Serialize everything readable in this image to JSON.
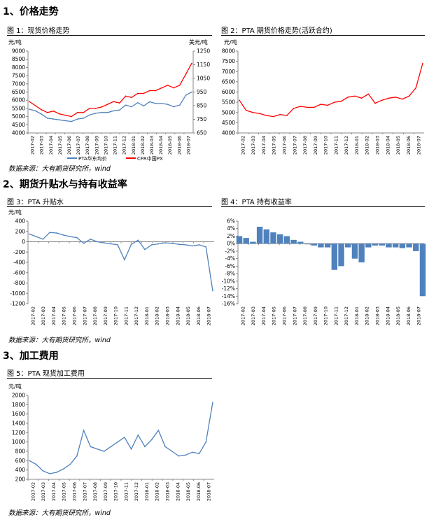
{
  "sections": {
    "s1": "1、价格走势",
    "s2": "2、期货升贴水与持有收益率",
    "s3": "3、加工费用"
  },
  "figures": {
    "f1": "图 1：现货价格走势",
    "f2": "图 2：PTA 期货价格走势(活跃合约)",
    "f3": "图 3：PTA 升贴水",
    "f4": "图 4：PTA 持有收益率",
    "f5": "图 5：PTA 现货加工费用"
  },
  "sources": {
    "src1": "数据来源：大有期货研究所，wind",
    "src2": "数据来源：大有期货研究所，wind",
    "src3": "数据来源：大有期货研究所，wind"
  },
  "chart_data": [
    {
      "id": "c1",
      "type": "line",
      "ylabel": "元/吨",
      "ylabel_right": "美元/吨",
      "ylim": [
        4000,
        9000
      ],
      "yticks": [
        4000,
        4500,
        5000,
        5500,
        6000,
        6500,
        7000,
        7500,
        8000,
        8500,
        9000
      ],
      "ylim_right": [
        650,
        1250
      ],
      "yticks_right": [
        650,
        750,
        850,
        950,
        1050,
        1150,
        1250
      ],
      "x_ticks": [
        "2017-02",
        "2017-03",
        "2017-04",
        "2017-05",
        "2017-06",
        "2017-07",
        "2017-08",
        "2017-09",
        "2017-10",
        "2017-11",
        "2017-12",
        "2018-01",
        "2018-02",
        "2018-03",
        "2018-04",
        "2018-05",
        "2018-06",
        "2018-07"
      ],
      "legend_position": "bottom",
      "series": [
        {
          "name": "PTA华东均价",
          "axis": "left",
          "color": "#4f81bd",
          "values": [
            5450,
            5350,
            5150,
            4900,
            4850,
            4800,
            4750,
            4700,
            4850,
            4900,
            5100,
            5200,
            5250,
            5250,
            5350,
            5400,
            5700,
            5600,
            5850,
            5650,
            5900,
            5800,
            5800,
            5750,
            5600,
            5700,
            6300,
            6500
          ]
        },
        {
          "name": "CFR中国PX",
          "axis": "right",
          "color": "#ff0000",
          "values": [
            880,
            850,
            820,
            800,
            810,
            790,
            780,
            770,
            800,
            800,
            830,
            830,
            840,
            860,
            880,
            870,
            920,
            910,
            940,
            940,
            960,
            960,
            980,
            1000,
            980,
            1000,
            1080,
            1160
          ]
        }
      ]
    },
    {
      "id": "c2",
      "type": "line",
      "ylabel": "元/吨",
      "ylim": [
        4000,
        8000
      ],
      "yticks": [
        4000,
        4500,
        5000,
        5500,
        6000,
        6500,
        7000,
        7500,
        8000
      ],
      "x_ticks": [
        "2017-02",
        "2017-03",
        "2017-04",
        "2017-05",
        "2017-06",
        "2017-07",
        "2017-08",
        "2017-09",
        "2017-10",
        "2017-11",
        "2017-12",
        "2018-01",
        "2018-02",
        "2018-03",
        "2018-04",
        "2018-05",
        "2018-06",
        "2018-07"
      ],
      "series": [
        {
          "name": "",
          "color": "#ff0000",
          "values": [
            5600,
            5100,
            5000,
            4950,
            4850,
            4800,
            4900,
            4850,
            5200,
            5300,
            5250,
            5250,
            5400,
            5350,
            5500,
            5550,
            5750,
            5800,
            5700,
            5900,
            5450,
            5600,
            5700,
            5750,
            5650,
            5800,
            6200,
            7400
          ]
        }
      ]
    },
    {
      "id": "c3",
      "type": "line",
      "ylabel": "元/吨",
      "ylim": [
        -1200,
        400
      ],
      "yticks": [
        -1200,
        -1000,
        -800,
        -600,
        -400,
        -200,
        0,
        200,
        400
      ],
      "x_ticks": [
        "2017-02",
        "2017-03",
        "2017-04",
        "2017-05",
        "2017-06",
        "2017-07",
        "2017-08",
        "2017-09",
        "2017-10",
        "2017-11",
        "2017-12",
        "2018-01",
        "2018-02",
        "2018-03",
        "2018-04",
        "2018-05",
        "2018-06",
        "2018-07"
      ],
      "series": [
        {
          "name": "",
          "color": "#4f81bd",
          "values": [
            150,
            100,
            50,
            180,
            170,
            130,
            100,
            80,
            -30,
            50,
            0,
            -20,
            -40,
            -60,
            -350,
            -50,
            30,
            -150,
            -60,
            -40,
            -20,
            -30,
            -50,
            -60,
            -80,
            -60,
            -100,
            -950
          ]
        }
      ]
    },
    {
      "id": "c4",
      "type": "bar",
      "ylabel": "",
      "ylim": [
        -16,
        6
      ],
      "yticks": [
        -16,
        -14,
        -12,
        -10,
        -8,
        -6,
        -4,
        -2,
        0,
        2,
        4,
        6
      ],
      "y_unit": "%",
      "x_ticks": [
        "2017-02",
        "2017-03",
        "2017-04",
        "2017-05",
        "2017-06",
        "2017-07",
        "2017-08",
        "2017-09",
        "2017-10",
        "2017-11",
        "2017-12",
        "2018-01",
        "2018-02",
        "2018-03",
        "2018-04",
        "2018-05",
        "2018-06",
        "2018-07"
      ],
      "series": [
        {
          "name": "",
          "color": "#4f81bd",
          "values": [
            2,
            1.5,
            0.5,
            4.5,
            3.8,
            3,
            2.5,
            2,
            1,
            0.5,
            0,
            -0.5,
            -1,
            -1,
            -7,
            -6,
            -1,
            -4,
            -5,
            -1,
            -0.5,
            -0.5,
            -1,
            -1,
            -1.2,
            -1,
            -2,
            -14
          ]
        }
      ]
    },
    {
      "id": "c5",
      "type": "line",
      "ylabel": "元/吨",
      "ylim": [
        200,
        2000
      ],
      "yticks": [
        200,
        400,
        600,
        800,
        1000,
        1200,
        1400,
        1600,
        1800,
        2000
      ],
      "x_ticks": [
        "2017-02",
        "2017-03",
        "2017-04",
        "2017-05",
        "2017-06",
        "2017-07",
        "2017-08",
        "2017-09",
        "2017-10",
        "2017-11",
        "2017-12",
        "2018-01",
        "2018-02",
        "2018-03",
        "2018-04",
        "2018-05",
        "2018-06",
        "2018-07"
      ],
      "series": [
        {
          "name": "",
          "color": "#4f81bd",
          "values": [
            600,
            520,
            380,
            320,
            350,
            420,
            520,
            700,
            1250,
            900,
            850,
            800,
            900,
            1000,
            1100,
            850,
            1150,
            900,
            1050,
            1250,
            900,
            800,
            700,
            720,
            780,
            750,
            1000,
            1850
          ]
        }
      ]
    }
  ]
}
